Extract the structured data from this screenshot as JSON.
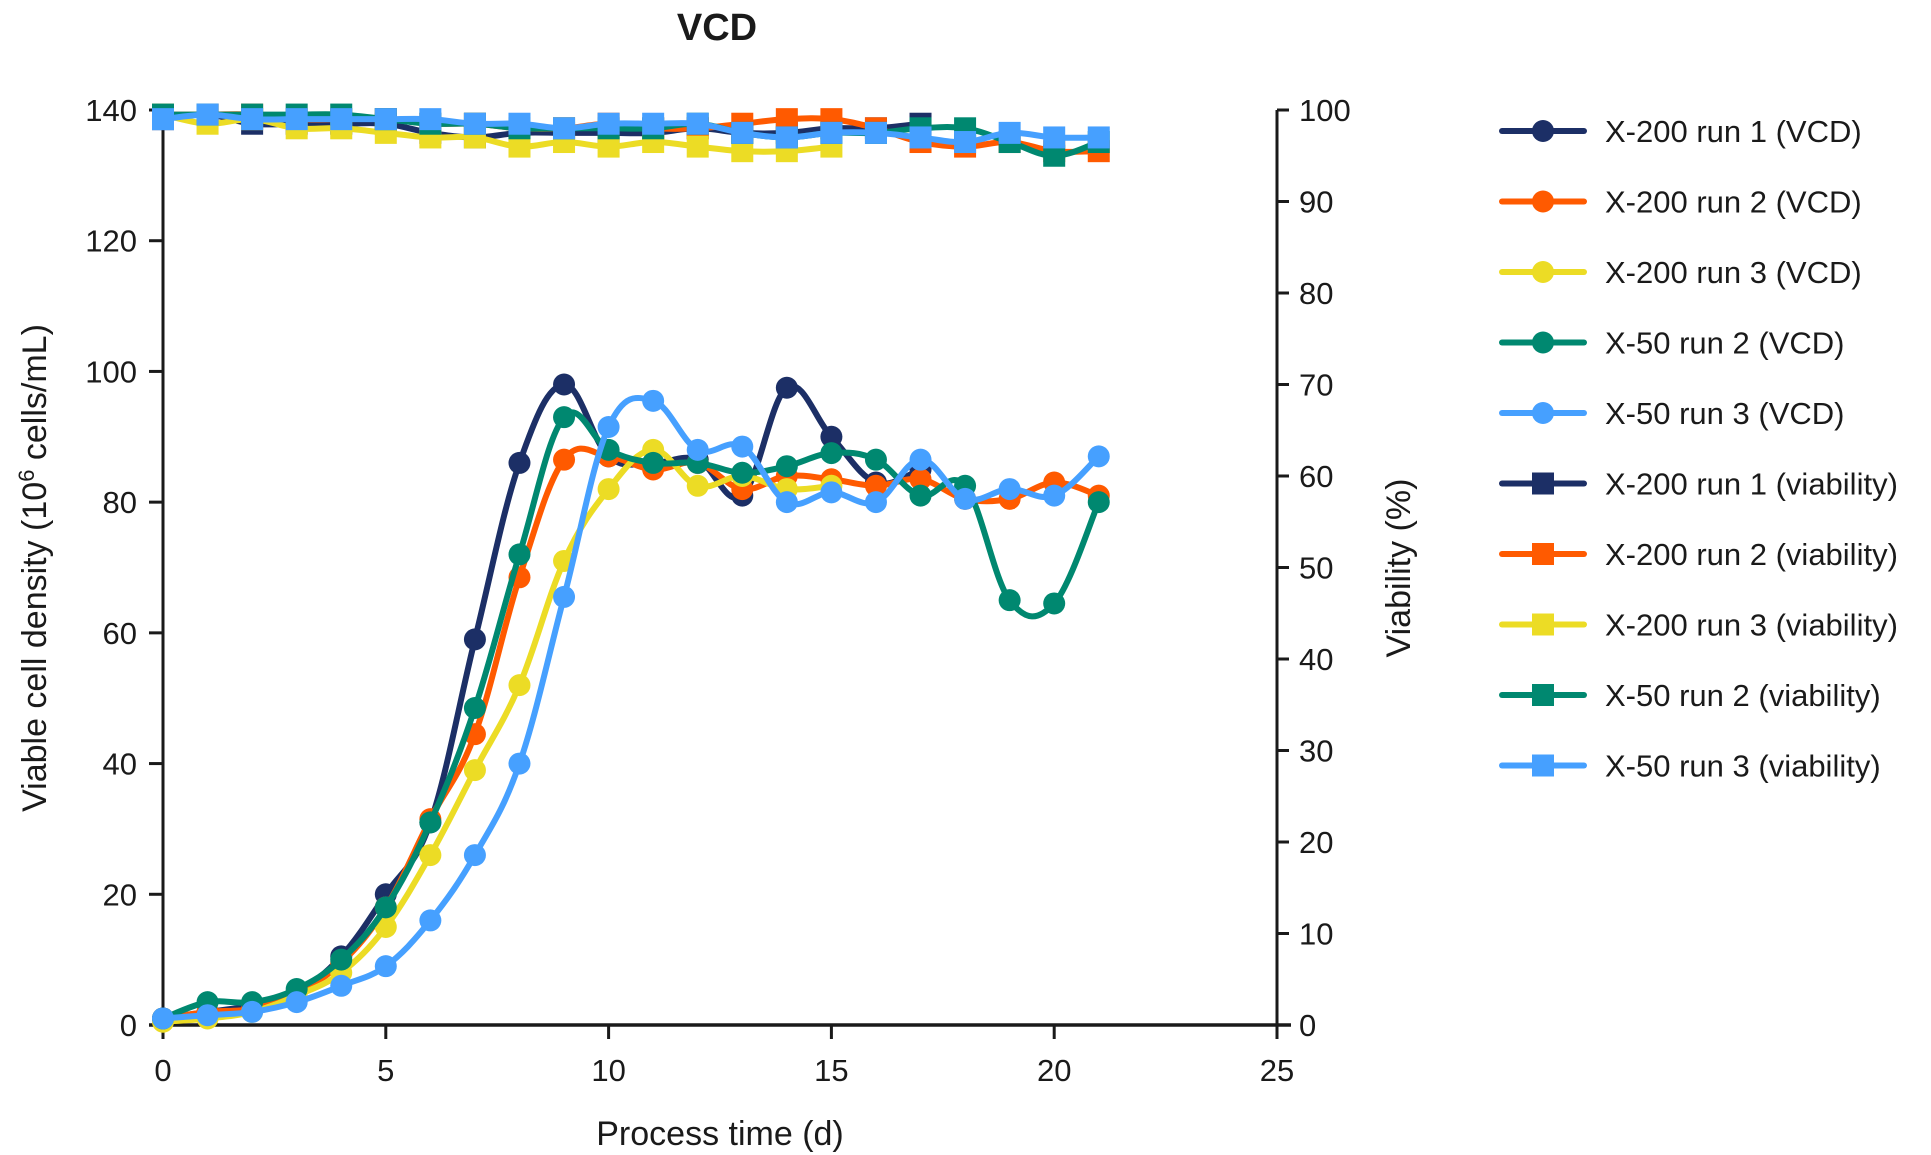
{
  "chart_data": {
    "type": "line",
    "title": "VCD",
    "xlabel": "Process time (d)",
    "ylabel": "Viable cell density (10^6 cells/mL)",
    "ylabel_parts": {
      "prefix": "Viable cell density (10",
      "sup": "6",
      "suffix": " cells/mL)"
    },
    "y2label": "Viability (%)",
    "xlim": [
      0,
      25
    ],
    "ylim": [
      0,
      140
    ],
    "y2lim": [
      0,
      100
    ],
    "x_ticks": [
      0,
      5,
      10,
      15,
      20,
      25
    ],
    "y_ticks": [
      0,
      20,
      40,
      60,
      80,
      100,
      120,
      140
    ],
    "y2_ticks": [
      0,
      10,
      20,
      30,
      40,
      50,
      60,
      70,
      80,
      90,
      100
    ],
    "grid": false,
    "legend_position": "right",
    "x": [
      0,
      1,
      2,
      3,
      4,
      5,
      6,
      7,
      8,
      9,
      10,
      11,
      12,
      13,
      14,
      15,
      16,
      17,
      18,
      19,
      20,
      21
    ],
    "series": [
      {
        "name": "X-200 run 1 (VCD)",
        "axis": "left",
        "marker": "circle",
        "color": "#1c2f66",
        "values": [
          1,
          2,
          3,
          5,
          10.5,
          20,
          31,
          59,
          86,
          98,
          87,
          86,
          86.5,
          81,
          97.5,
          90,
          83,
          85,
          null,
          null,
          null,
          null
        ]
      },
      {
        "name": "X-200 run 2 (VCD)",
        "axis": "left",
        "marker": "circle",
        "color": "#ff5a00",
        "values": [
          1,
          2,
          2.5,
          5,
          9.5,
          18,
          31.5,
          44.5,
          68.5,
          86.5,
          87,
          85,
          86,
          82,
          84,
          83.5,
          82.5,
          83.5,
          80.5,
          80.5,
          83,
          81
        ]
      },
      {
        "name": "X-200 run 3 (VCD)",
        "axis": "left",
        "marker": "circle",
        "color": "#ecdc25",
        "values": [
          0.5,
          1,
          2,
          4.5,
          8,
          15,
          26,
          39,
          52,
          71,
          82,
          88,
          82.5,
          84,
          82,
          82.5,
          null,
          null,
          null,
          null,
          null,
          null
        ]
      },
      {
        "name": "X-50 run 2 (VCD)",
        "axis": "left",
        "marker": "circle",
        "color": "#008870",
        "values": [
          1,
          3.5,
          3.5,
          5.5,
          10,
          18,
          31,
          48.5,
          72,
          93,
          88,
          86,
          86,
          84.5,
          85.5,
          87.5,
          86.5,
          81,
          82.5,
          65,
          64.5,
          80
        ]
      },
      {
        "name": "X-50 run 3 (VCD)",
        "axis": "left",
        "marker": "circle",
        "color": "#46a0ff",
        "values": [
          1,
          1.5,
          2,
          3.5,
          6,
          9,
          16,
          26,
          40,
          65.5,
          91.5,
          95.5,
          88,
          88.5,
          80,
          81.5,
          80,
          86.5,
          80.5,
          82,
          81,
          87
        ]
      },
      {
        "name": "X-200 run 1 (viability)",
        "axis": "right",
        "marker": "square",
        "color": "#1c2f66",
        "values": [
          99,
          99.5,
          98.5,
          98.5,
          98.5,
          98.5,
          97.5,
          97,
          97.5,
          97.5,
          97.5,
          97.5,
          98,
          97.5,
          97.5,
          98,
          98,
          98.5,
          null,
          null,
          null,
          null
        ]
      },
      {
        "name": "X-200 run 2 (viability)",
        "axis": "right",
        "marker": "square",
        "color": "#ff5a00",
        "values": [
          99.5,
          99.5,
          99.5,
          99,
          99,
          99,
          98.5,
          98.5,
          98,
          98,
          98.5,
          98,
          98,
          98.5,
          99,
          99,
          98,
          96.5,
          96,
          96.5,
          95.5,
          95.5
        ]
      },
      {
        "name": "X-200 run 3 (viability)",
        "axis": "right",
        "marker": "square",
        "color": "#ecdc25",
        "values": [
          99.5,
          98.5,
          99,
          98,
          98,
          97.5,
          97,
          97,
          96,
          96.5,
          96,
          96.5,
          96,
          95.5,
          95.5,
          96,
          null,
          null,
          null,
          null,
          null,
          null
        ]
      },
      {
        "name": "X-50 run 2 (viability)",
        "axis": "right",
        "marker": "square",
        "color": "#008870",
        "values": [
          99.5,
          99.5,
          99.5,
          99.5,
          99.5,
          99,
          98.5,
          98.5,
          98,
          98,
          98,
          98,
          98.5,
          97.5,
          97,
          97.5,
          97.5,
          98,
          98,
          96.5,
          95,
          96.5
        ]
      },
      {
        "name": "X-50 run 3 (viability)",
        "axis": "right",
        "marker": "square",
        "color": "#46a0ff",
        "values": [
          99,
          99.5,
          99,
          99,
          99,
          99,
          99,
          98.5,
          98.5,
          98,
          98.5,
          98.5,
          98.5,
          97.5,
          97,
          97.5,
          97.5,
          97,
          96.5,
          97.5,
          97,
          97
        ]
      }
    ]
  }
}
